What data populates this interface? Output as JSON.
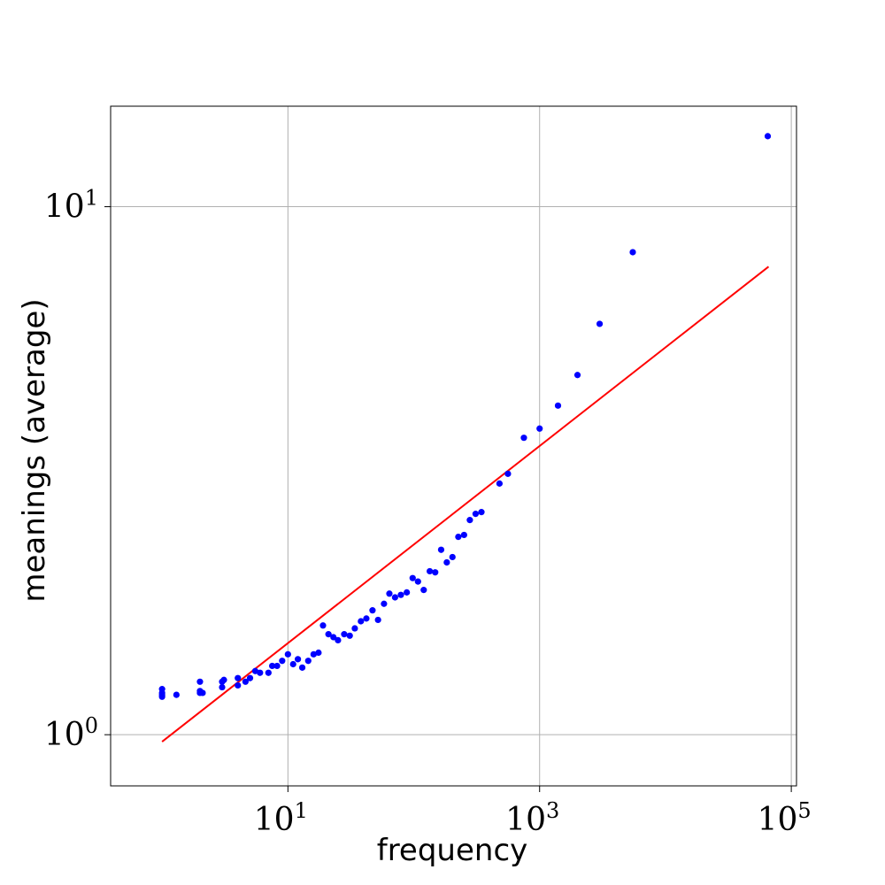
{
  "chart_data": {
    "type": "scatter",
    "xlabel": "frequency",
    "ylabel": "meanings (average)",
    "x_scale": "log",
    "y_scale": "log",
    "xlim": [
      0.39,
      110000
    ],
    "ylim": [
      0.8,
      15.5
    ],
    "grid": true,
    "x_ticks": [
      {
        "base": "10",
        "exp": "1",
        "value": 10
      },
      {
        "base": "10",
        "exp": "3",
        "value": 1000
      },
      {
        "base": "10",
        "exp": "5",
        "value": 100000
      }
    ],
    "y_ticks": [
      {
        "base": "10",
        "exp": "0",
        "value": 1
      },
      {
        "base": "10",
        "exp": "1",
        "value": 10
      }
    ],
    "colors": {
      "points": "#0000ff",
      "fit_line": "#ff0000",
      "grid": "#b0b0b0"
    },
    "fit_line": {
      "x": [
        1,
        66000
      ],
      "y": [
        0.97,
        7.7
      ]
    },
    "points": [
      {
        "x": 1,
        "y": 1.22
      },
      {
        "x": 1,
        "y": 1.2
      },
      {
        "x": 1,
        "y": 1.19
      },
      {
        "x": 1,
        "y": 1.18
      },
      {
        "x": 1.3,
        "y": 1.19
      },
      {
        "x": 2,
        "y": 1.2
      },
      {
        "x": 2,
        "y": 1.21
      },
      {
        "x": 2.1,
        "y": 1.2
      },
      {
        "x": 2,
        "y": 1.26
      },
      {
        "x": 3,
        "y": 1.23
      },
      {
        "x": 3,
        "y": 1.26
      },
      {
        "x": 3.1,
        "y": 1.27
      },
      {
        "x": 4,
        "y": 1.24
      },
      {
        "x": 4,
        "y": 1.28
      },
      {
        "x": 4.6,
        "y": 1.26
      },
      {
        "x": 5,
        "y": 1.28
      },
      {
        "x": 5.5,
        "y": 1.32
      },
      {
        "x": 6,
        "y": 1.31
      },
      {
        "x": 7,
        "y": 1.31
      },
      {
        "x": 7.5,
        "y": 1.35
      },
      {
        "x": 8.2,
        "y": 1.35
      },
      {
        "x": 9,
        "y": 1.38
      },
      {
        "x": 10,
        "y": 1.42
      },
      {
        "x": 11,
        "y": 1.36
      },
      {
        "x": 12,
        "y": 1.39
      },
      {
        "x": 13,
        "y": 1.34
      },
      {
        "x": 14.5,
        "y": 1.38
      },
      {
        "x": 16,
        "y": 1.42
      },
      {
        "x": 17.5,
        "y": 1.43
      },
      {
        "x": 19,
        "y": 1.61
      },
      {
        "x": 21,
        "y": 1.55
      },
      {
        "x": 23,
        "y": 1.53
      },
      {
        "x": 25,
        "y": 1.51
      },
      {
        "x": 28,
        "y": 1.55
      },
      {
        "x": 31,
        "y": 1.54
      },
      {
        "x": 34,
        "y": 1.59
      },
      {
        "x": 38,
        "y": 1.64
      },
      {
        "x": 42,
        "y": 1.66
      },
      {
        "x": 47,
        "y": 1.72
      },
      {
        "x": 52,
        "y": 1.65
      },
      {
        "x": 58,
        "y": 1.77
      },
      {
        "x": 64,
        "y": 1.85
      },
      {
        "x": 71,
        "y": 1.82
      },
      {
        "x": 79,
        "y": 1.84
      },
      {
        "x": 88,
        "y": 1.86
      },
      {
        "x": 98,
        "y": 1.98
      },
      {
        "x": 108,
        "y": 1.95
      },
      {
        "x": 120,
        "y": 1.88
      },
      {
        "x": 134,
        "y": 2.04
      },
      {
        "x": 148,
        "y": 2.03
      },
      {
        "x": 165,
        "y": 2.24
      },
      {
        "x": 183,
        "y": 2.12
      },
      {
        "x": 203,
        "y": 2.17
      },
      {
        "x": 226,
        "y": 2.37
      },
      {
        "x": 251,
        "y": 2.39
      },
      {
        "x": 279,
        "y": 2.55
      },
      {
        "x": 310,
        "y": 2.62
      },
      {
        "x": 345,
        "y": 2.64
      },
      {
        "x": 480,
        "y": 2.99
      },
      {
        "x": 560,
        "y": 3.12
      },
      {
        "x": 750,
        "y": 3.65
      },
      {
        "x": 1000,
        "y": 3.8
      },
      {
        "x": 1400,
        "y": 4.2
      },
      {
        "x": 2000,
        "y": 4.8
      },
      {
        "x": 3000,
        "y": 6.0
      },
      {
        "x": 5500,
        "y": 8.2
      },
      {
        "x": 65000,
        "y": 13.6
      }
    ]
  }
}
